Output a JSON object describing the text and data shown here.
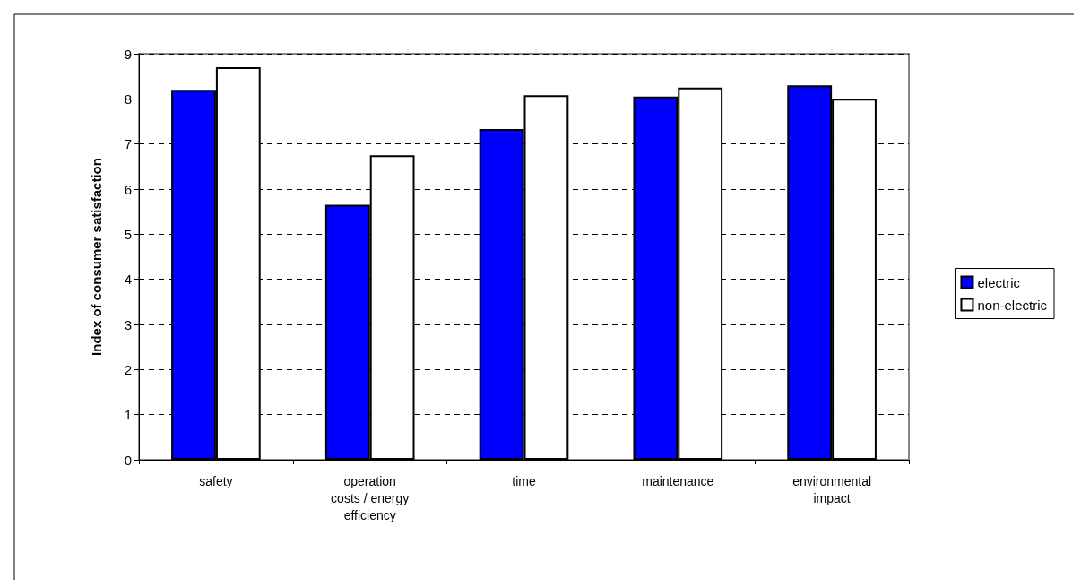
{
  "chart_data": {
    "type": "bar",
    "ylabel": "Index of consumer satisfaction",
    "categories": [
      "safety",
      "operation\ncosts / energy\nefficiency",
      "time",
      "maintenance",
      "environmental\nimpact"
    ],
    "series": [
      {
        "name": "electric",
        "color": "#0000ff",
        "values": [
          8.2,
          5.65,
          7.33,
          8.05,
          8.3
        ]
      },
      {
        "name": "non-electric",
        "color": "#ffffff",
        "values": [
          8.7,
          6.75,
          8.08,
          8.25,
          8.0
        ]
      }
    ],
    "ylim": [
      0,
      9
    ],
    "yticks": [
      0,
      1,
      2,
      3,
      4,
      5,
      6,
      7,
      8,
      9
    ],
    "grid": "y",
    "legend": "right"
  }
}
